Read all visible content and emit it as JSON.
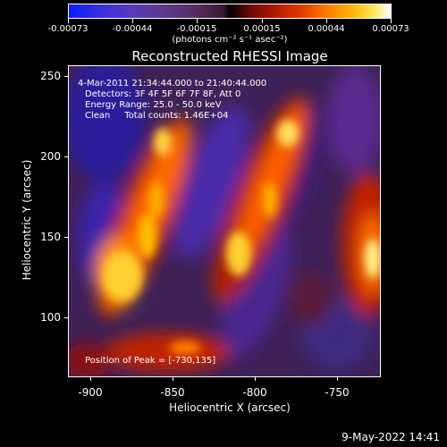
{
  "colorbar": {
    "ticks": [
      "-0.00073",
      "-0.00044",
      "-0.00015",
      "0.00015",
      "0.00044",
      "0.00073"
    ],
    "units": "(photons cm⁻² s⁻¹ asec⁻²)"
  },
  "title": "Reconstructed RHESSI Image",
  "info": {
    "time": "4-Mar-2011 21:34:44.000 to 21:40:44.000",
    "detectors": "Detectors: 3F 4F 5F 6F 7F 8F, Att 0",
    "energy": "Energy Range: 25.0 - 50.0 keV",
    "clean": "Clean     Total counts: 1.46E+04",
    "peak": "Position of Peak = [-730,135]"
  },
  "axes": {
    "xlabel": "Heliocentric X (arcsec)",
    "ylabel": "Heliocentric Y (arcsec)",
    "xticks": [
      "-900",
      "-850",
      "-800",
      "-750"
    ],
    "yticks": [
      "250",
      "200",
      "150",
      "100"
    ]
  },
  "timestamp": "9-May-2022 14:41"
}
